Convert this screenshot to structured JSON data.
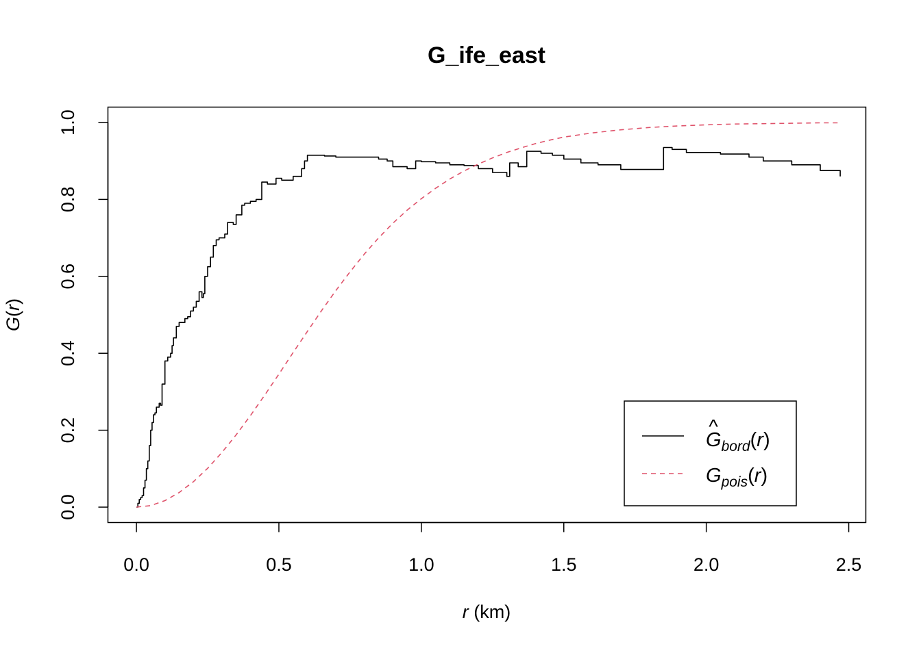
{
  "chart_data": {
    "type": "line",
    "title": "G_ife_east",
    "xlabel": {
      "var": "r",
      "unit": " (km)"
    },
    "ylabel": {
      "func": "G",
      "var": "r"
    },
    "xlim": [
      -0.1,
      2.56
    ],
    "ylim": [
      -0.04,
      1.04
    ],
    "x_ticks": [
      0.0,
      0.5,
      1.0,
      1.5,
      2.0,
      2.5
    ],
    "x_tick_labels": [
      "0.0",
      "0.5",
      "1.0",
      "1.5",
      "2.0",
      "2.5"
    ],
    "y_ticks": [
      0.0,
      0.2,
      0.4,
      0.6,
      0.8,
      1.0
    ],
    "y_tick_labels": [
      "0.0",
      "0.2",
      "0.4",
      "0.6",
      "0.8",
      "1.0"
    ],
    "legend_position": "bottom-right",
    "series": [
      {
        "key": "bord",
        "legend_base": "G",
        "legend_hat": true,
        "legend_sub": "bord",
        "legend_arg": "r",
        "color": "#000000",
        "dash": "solid",
        "step": true,
        "x": [
          0.0,
          0.005,
          0.01,
          0.015,
          0.02,
          0.025,
          0.03,
          0.035,
          0.04,
          0.045,
          0.05,
          0.055,
          0.06,
          0.065,
          0.07,
          0.08,
          0.085,
          0.09,
          0.1,
          0.11,
          0.12,
          0.125,
          0.13,
          0.14,
          0.15,
          0.16,
          0.17,
          0.18,
          0.19,
          0.2,
          0.21,
          0.22,
          0.23,
          0.235,
          0.24,
          0.25,
          0.26,
          0.27,
          0.28,
          0.29,
          0.3,
          0.31,
          0.32,
          0.33,
          0.34,
          0.35,
          0.37,
          0.38,
          0.39,
          0.4,
          0.42,
          0.44,
          0.46,
          0.49,
          0.51,
          0.54,
          0.55,
          0.57,
          0.58,
          0.59,
          0.6,
          0.62,
          0.66,
          0.7,
          0.85,
          0.88,
          0.9,
          0.92,
          0.95,
          0.98,
          1.0,
          1.05,
          1.1,
          1.15,
          1.2,
          1.25,
          1.3,
          1.31,
          1.34,
          1.37,
          1.42,
          1.46,
          1.5,
          1.56,
          1.62,
          1.7,
          1.85,
          1.88,
          1.93,
          2.05,
          2.15,
          2.2,
          2.3,
          2.4,
          2.47
        ],
        "y": [
          0.0,
          0.01,
          0.02,
          0.025,
          0.03,
          0.05,
          0.07,
          0.1,
          0.12,
          0.16,
          0.2,
          0.22,
          0.24,
          0.245,
          0.26,
          0.27,
          0.265,
          0.32,
          0.38,
          0.39,
          0.4,
          0.42,
          0.44,
          0.47,
          0.48,
          0.48,
          0.49,
          0.495,
          0.51,
          0.52,
          0.535,
          0.56,
          0.545,
          0.555,
          0.6,
          0.625,
          0.65,
          0.68,
          0.695,
          0.7,
          0.7,
          0.71,
          0.74,
          0.74,
          0.735,
          0.76,
          0.785,
          0.79,
          0.79,
          0.795,
          0.8,
          0.845,
          0.84,
          0.855,
          0.85,
          0.85,
          0.86,
          0.86,
          0.88,
          0.9,
          0.915,
          0.915,
          0.913,
          0.91,
          0.905,
          0.9,
          0.885,
          0.885,
          0.88,
          0.9,
          0.898,
          0.895,
          0.89,
          0.888,
          0.88,
          0.87,
          0.86,
          0.895,
          0.885,
          0.925,
          0.92,
          0.915,
          0.905,
          0.895,
          0.89,
          0.878,
          0.935,
          0.93,
          0.922,
          0.918,
          0.91,
          0.9,
          0.89,
          0.875,
          0.86
        ]
      },
      {
        "key": "pois",
        "legend_base": "G",
        "legend_hat": false,
        "legend_sub": "pois",
        "legend_arg": "r",
        "color": "#DF536B",
        "dash": "dashed",
        "step": false,
        "x": [
          0.0,
          0.05,
          0.1,
          0.15,
          0.2,
          0.25,
          0.3,
          0.35,
          0.4,
          0.45,
          0.5,
          0.55,
          0.6,
          0.65,
          0.7,
          0.75,
          0.8,
          0.85,
          0.9,
          0.95,
          1.0,
          1.05,
          1.1,
          1.15,
          1.2,
          1.25,
          1.3,
          1.35,
          1.4,
          1.45,
          1.5,
          1.6,
          1.7,
          1.8,
          1.9,
          2.0,
          2.1,
          2.2,
          2.3,
          2.4,
          2.47
        ],
        "y": [
          0.0,
          0.004,
          0.017,
          0.038,
          0.066,
          0.101,
          0.142,
          0.188,
          0.238,
          0.291,
          0.346,
          0.402,
          0.457,
          0.511,
          0.563,
          0.612,
          0.658,
          0.7,
          0.738,
          0.772,
          0.802,
          0.829,
          0.853,
          0.874,
          0.892,
          0.908,
          0.922,
          0.934,
          0.945,
          0.954,
          0.962,
          0.973,
          0.981,
          0.987,
          0.991,
          0.994,
          0.996,
          0.997,
          0.998,
          0.999,
          0.999
        ]
      }
    ]
  }
}
